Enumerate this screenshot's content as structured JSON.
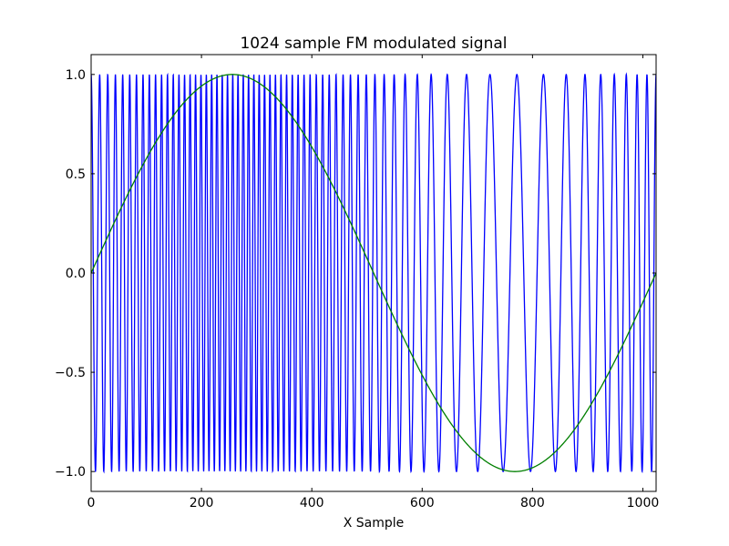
{
  "chart_data": {
    "type": "line",
    "title": "1024 sample FM modulated signal",
    "xlabel": "X Sample",
    "ylabel": "",
    "xlim": [
      0,
      1024
    ],
    "ylim": [
      -1.1,
      1.1
    ],
    "grid": false,
    "x_ticks": [
      0,
      200,
      400,
      600,
      800,
      1000
    ],
    "x_tick_labels": [
      "0",
      "200",
      "400",
      "600",
      "800",
      "1000"
    ],
    "y_ticks": [
      1.0,
      0.5,
      0.0,
      -0.5,
      -1.0
    ],
    "y_tick_labels": [
      "1.0",
      "0.5",
      "0.0",
      "−0.5",
      "−1.0"
    ],
    "series": [
      {
        "color": "#0000ff",
        "sample_count": 1024,
        "waveform": "fm",
        "carrier_cycles_per_sample": 0.0625,
        "deviation_cycles_per_sample": 0.0425,
        "modulator_period_samples": 1024
      },
      {
        "color": "#007f00",
        "sample_count": 1024,
        "waveform": "sine",
        "amplitude": 1.0,
        "period_samples": 1024
      }
    ]
  }
}
